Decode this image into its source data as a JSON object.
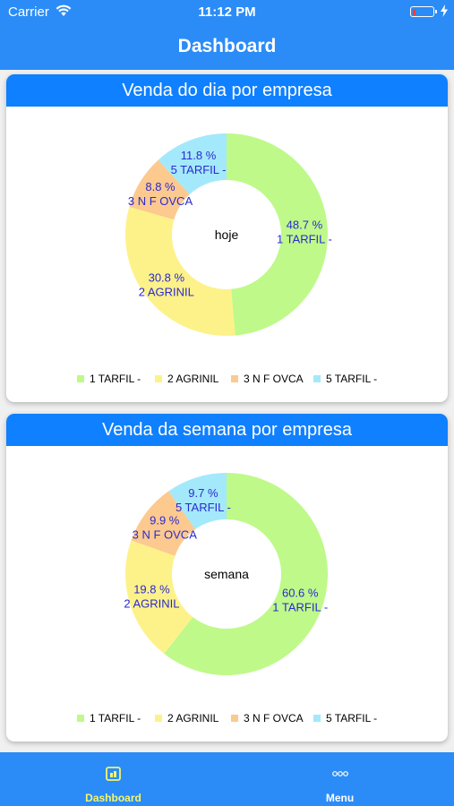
{
  "status_bar": {
    "carrier": "Carrier",
    "time": "11:12 PM",
    "battery_level_percent": 15
  },
  "nav": {
    "title": "Dashboard"
  },
  "colors": {
    "primary": "#2b8cf7",
    "header": "#0f80ff",
    "label_text": "#2a2ad0",
    "tab_active": "#f4f56a",
    "tab_inactive": "#ffffff",
    "slices": [
      "#bff98a",
      "#fdf28a",
      "#fcc98f",
      "#a3e9fb"
    ]
  },
  "cards": [
    {
      "title": "Venda do dia por empresa",
      "center_label": "hoje",
      "chart_data": {
        "type": "pie",
        "donut": true,
        "labels": [
          "1 TARFIL -",
          "2 AGRINIL",
          "3 N F OVCA",
          "5 TARFIL -"
        ],
        "values": [
          48.7,
          30.8,
          8.8,
          11.8
        ],
        "value_labels": [
          "48.7 %",
          "30.8 %",
          "8.8 %",
          "11.8 %"
        ],
        "legend_position": "bottom"
      }
    },
    {
      "title": "Venda da semana por empresa",
      "center_label": "semana",
      "chart_data": {
        "type": "pie",
        "donut": true,
        "labels": [
          "1 TARFIL -",
          "2 AGRINIL",
          "3 N F OVCA",
          "5 TARFIL -"
        ],
        "values": [
          60.6,
          19.8,
          9.9,
          9.7
        ],
        "value_labels": [
          "60.6 %",
          "19.8 %",
          "9.9 %",
          "9.7 %"
        ],
        "legend_position": "bottom"
      }
    }
  ],
  "tab_bar": {
    "tabs": [
      {
        "label": "Dashboard",
        "icon": "dashboard-icon",
        "active": true
      },
      {
        "label": "Menu",
        "icon": "more-dots-icon",
        "active": false
      }
    ]
  }
}
